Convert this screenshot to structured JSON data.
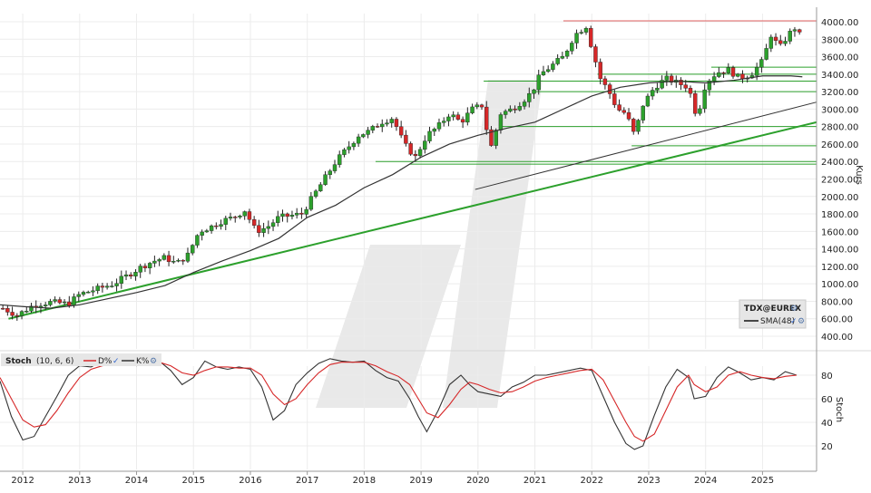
{
  "chart_data": [
    {
      "type": "candlestick",
      "symbol": "TDX@EUREX",
      "ylabel": "Kurs",
      "ylim": [
        400,
        4000
      ],
      "yticks": [
        400,
        600,
        800,
        1000,
        1200,
        1400,
        1600,
        1800,
        2000,
        2200,
        2400,
        2600,
        2800,
        3000,
        3200,
        3400,
        3600,
        3800,
        4000
      ],
      "ytick_labels": [
        "400.00",
        "600.00",
        "800.00",
        "1000.00",
        "1200.00",
        "1400.00",
        "1600.00",
        "1800.00",
        "2000.00",
        "2200.00",
        "2400.00",
        "2600.00",
        "2800.00",
        "3000.00",
        "3200.00",
        "3400.00",
        "3600.00",
        "3800.00",
        "4000.00"
      ],
      "xlim": [
        2011.6,
        2025.95
      ],
      "xticks": [
        2012,
        2013,
        2014,
        2015,
        2016,
        2017,
        2018,
        2019,
        2020,
        2021,
        2022,
        2023,
        2024,
        2025
      ],
      "xtick_labels": [
        "2012",
        "2013",
        "2014",
        "2015",
        "2016",
        "2017",
        "2018",
        "2019",
        "2020",
        "2021",
        "2022",
        "2023",
        "2024",
        "2025"
      ],
      "grid": true,
      "legend_position": "bottom-right",
      "legend": {
        "symbol": "TDX@EUREX",
        "sma": "SMA(48)"
      },
      "colors": {
        "up": "#2ca02c",
        "down": "#d62728",
        "sma": "#333333",
        "trend": "#2ca02c",
        "resistance": "#e06060",
        "support": "#2ca02c"
      },
      "close_path": [
        [
          2011.65,
          720
        ],
        [
          2011.9,
          640
        ],
        [
          2012.2,
          760
        ],
        [
          2012.5,
          790
        ],
        [
          2012.8,
          770
        ],
        [
          2013.0,
          880
        ],
        [
          2013.3,
          940
        ],
        [
          2013.6,
          1000
        ],
        [
          2013.9,
          1120
        ],
        [
          2014.1,
          1200
        ],
        [
          2014.3,
          1260
        ],
        [
          2014.5,
          1300
        ],
        [
          2014.7,
          1230
        ],
        [
          2014.9,
          1330
        ],
        [
          2015.1,
          1600
        ],
        [
          2015.3,
          1650
        ],
        [
          2015.5,
          1720
        ],
        [
          2015.7,
          1760
        ],
        [
          2015.9,
          1840
        ],
        [
          2016.1,
          1600
        ],
        [
          2016.3,
          1650
        ],
        [
          2016.5,
          1760
        ],
        [
          2016.7,
          1780
        ],
        [
          2016.9,
          1800
        ],
        [
          2017.1,
          2000
        ],
        [
          2017.3,
          2200
        ],
        [
          2017.5,
          2400
        ],
        [
          2017.7,
          2550
        ],
        [
          2017.9,
          2700
        ],
        [
          2018.1,
          2750
        ],
        [
          2018.3,
          2850
        ],
        [
          2018.5,
          2900
        ],
        [
          2018.7,
          2600
        ],
        [
          2018.9,
          2450
        ],
        [
          2019.1,
          2700
        ],
        [
          2019.3,
          2800
        ],
        [
          2019.5,
          2950
        ],
        [
          2019.7,
          2850
        ],
        [
          2019.9,
          3000
        ],
        [
          2020.1,
          3050
        ],
        [
          2020.2,
          2500
        ],
        [
          2020.4,
          2950
        ],
        [
          2020.6,
          3000
        ],
        [
          2020.8,
          3100
        ],
        [
          2020.95,
          3200
        ],
        [
          2021.1,
          3400
        ],
        [
          2021.3,
          3500
        ],
        [
          2021.5,
          3600
        ],
        [
          2021.7,
          3850
        ],
        [
          2021.9,
          3950
        ],
        [
          2022.0,
          3700
        ],
        [
          2022.15,
          3350
        ],
        [
          2022.3,
          3200
        ],
        [
          2022.45,
          3000
        ],
        [
          2022.6,
          2950
        ],
        [
          2022.75,
          2700
        ],
        [
          2022.9,
          3050
        ],
        [
          2023.1,
          3250
        ],
        [
          2023.3,
          3350
        ],
        [
          2023.5,
          3300
        ],
        [
          2023.7,
          3250
        ],
        [
          2023.85,
          2900
        ],
        [
          2024.0,
          3300
        ],
        [
          2024.2,
          3420
        ],
        [
          2024.4,
          3450
        ],
        [
          2024.6,
          3350
        ],
        [
          2024.8,
          3400
        ],
        [
          2025.0,
          3550
        ],
        [
          2025.15,
          3850
        ],
        [
          2025.3,
          3700
        ],
        [
          2025.45,
          3850
        ],
        [
          2025.6,
          3950
        ],
        [
          2025.7,
          3750
        ]
      ],
      "sma48": [
        [
          2011.6,
          760
        ],
        [
          2012.0,
          740
        ],
        [
          2012.5,
          720
        ],
        [
          2013.0,
          760
        ],
        [
          2013.5,
          830
        ],
        [
          2014.0,
          900
        ],
        [
          2014.5,
          980
        ],
        [
          2015.0,
          1130
        ],
        [
          2015.5,
          1260
        ],
        [
          2016.0,
          1380
        ],
        [
          2016.5,
          1520
        ],
        [
          2017.0,
          1760
        ],
        [
          2017.5,
          1900
        ],
        [
          2018.0,
          2100
        ],
        [
          2018.5,
          2250
        ],
        [
          2019.0,
          2450
        ],
        [
          2019.5,
          2600
        ],
        [
          2020.0,
          2700
        ],
        [
          2020.5,
          2780
        ],
        [
          2021.0,
          2850
        ],
        [
          2021.5,
          3000
        ],
        [
          2022.0,
          3150
        ],
        [
          2022.5,
          3250
        ],
        [
          2023.0,
          3300
        ],
        [
          2023.5,
          3320
        ],
        [
          2024.0,
          3300
        ],
        [
          2024.5,
          3330
        ],
        [
          2025.0,
          3380
        ],
        [
          2025.5,
          3380
        ],
        [
          2025.7,
          3370
        ]
      ],
      "trend_lines": [
        {
          "color": "green",
          "from": [
            2011.75,
            600
          ],
          "to": [
            2025.95,
            2850
          ]
        },
        {
          "color": "dark",
          "from": [
            2019.95,
            2080
          ],
          "to": [
            2025.95,
            3080
          ]
        }
      ],
      "horizontal_levels": [
        {
          "color": "red",
          "y": 4010,
          "from": 2021.5,
          "to": 2025.95
        },
        {
          "color": "green",
          "y": 3480,
          "from": 2024.1,
          "to": 2025.95
        },
        {
          "color": "green",
          "y": 3400,
          "from": 2022.1,
          "to": 2025.95
        },
        {
          "color": "green",
          "y": 3320,
          "from": 2020.1,
          "to": 2025.95
        },
        {
          "color": "green",
          "y": 3200,
          "from": 2021.0,
          "to": 2025.95
        },
        {
          "color": "green",
          "y": 2800,
          "from": 2020.4,
          "to": 2025.95
        },
        {
          "color": "green",
          "y": 2580,
          "from": 2022.7,
          "to": 2025.95
        },
        {
          "color": "green",
          "y": 2400,
          "from": 2018.2,
          "to": 2025.95
        },
        {
          "color": "green",
          "y": 2370,
          "from": 2018.8,
          "to": 2025.95
        }
      ]
    },
    {
      "type": "line",
      "title": "Stoch",
      "params": "(10, 6, 6)",
      "ylabel": "Stoch",
      "ylim": [
        10,
        100
      ],
      "yticks": [
        20,
        40,
        60,
        80
      ],
      "ytick_labels": [
        "20",
        "40",
        "60",
        "80"
      ],
      "legend": {
        "d": "D%",
        "k": "K%"
      },
      "series": [
        {
          "name": "K%",
          "color": "#333333",
          "points": [
            [
              2011.6,
              75
            ],
            [
              2011.8,
              45
            ],
            [
              2012.0,
              25
            ],
            [
              2012.2,
              28
            ],
            [
              2012.4,
              45
            ],
            [
              2012.6,
              62
            ],
            [
              2012.8,
              80
            ],
            [
              2013.0,
              88
            ],
            [
              2013.2,
              87
            ],
            [
              2013.4,
              92
            ],
            [
              2013.6,
              90
            ],
            [
              2013.8,
              93
            ],
            [
              2014.0,
              88
            ],
            [
              2014.2,
              94
            ],
            [
              2014.4,
              92
            ],
            [
              2014.6,
              84
            ],
            [
              2014.8,
              72
            ],
            [
              2015.0,
              78
            ],
            [
              2015.2,
              92
            ],
            [
              2015.4,
              87
            ],
            [
              2015.6,
              85
            ],
            [
              2015.8,
              87
            ],
            [
              2016.0,
              85
            ],
            [
              2016.2,
              70
            ],
            [
              2016.4,
              42
            ],
            [
              2016.6,
              50
            ],
            [
              2016.8,
              72
            ],
            [
              2017.0,
              82
            ],
            [
              2017.2,
              90
            ],
            [
              2017.4,
              94
            ],
            [
              2017.6,
              92
            ],
            [
              2017.8,
              91
            ],
            [
              2018.0,
              92
            ],
            [
              2018.2,
              84
            ],
            [
              2018.4,
              78
            ],
            [
              2018.6,
              75
            ],
            [
              2018.8,
              60
            ],
            [
              2018.95,
              45
            ],
            [
              2019.1,
              32
            ],
            [
              2019.3,
              50
            ],
            [
              2019.5,
              72
            ],
            [
              2019.7,
              80
            ],
            [
              2019.85,
              72
            ],
            [
              2020.0,
              66
            ],
            [
              2020.2,
              64
            ],
            [
              2020.4,
              62
            ],
            [
              2020.6,
              70
            ],
            [
              2020.8,
              74
            ],
            [
              2021.0,
              80
            ],
            [
              2021.2,
              80
            ],
            [
              2021.4,
              82
            ],
            [
              2021.6,
              84
            ],
            [
              2021.8,
              86
            ],
            [
              2022.0,
              84
            ],
            [
              2022.2,
              62
            ],
            [
              2022.4,
              40
            ],
            [
              2022.6,
              22
            ],
            [
              2022.75,
              17
            ],
            [
              2022.9,
              20
            ],
            [
              2023.1,
              46
            ],
            [
              2023.3,
              70
            ],
            [
              2023.5,
              85
            ],
            [
              2023.7,
              78
            ],
            [
              2023.8,
              60
            ],
            [
              2024.0,
              62
            ],
            [
              2024.2,
              78
            ],
            [
              2024.4,
              87
            ],
            [
              2024.6,
              82
            ],
            [
              2024.8,
              76
            ],
            [
              2025.0,
              78
            ],
            [
              2025.2,
              76
            ],
            [
              2025.4,
              83
            ],
            [
              2025.6,
              80
            ]
          ]
        },
        {
          "name": "D%",
          "color": "#d62728",
          "points": [
            [
              2011.6,
              78
            ],
            [
              2011.8,
              60
            ],
            [
              2012.0,
              42
            ],
            [
              2012.2,
              36
            ],
            [
              2012.4,
              38
            ],
            [
              2012.6,
              50
            ],
            [
              2012.8,
              65
            ],
            [
              2013.0,
              78
            ],
            [
              2013.2,
              85
            ],
            [
              2013.4,
              88
            ],
            [
              2013.6,
              89
            ],
            [
              2013.8,
              90
            ],
            [
              2014.0,
              90
            ],
            [
              2014.2,
              91
            ],
            [
              2014.4,
              91
            ],
            [
              2014.6,
              88
            ],
            [
              2014.8,
              82
            ],
            [
              2015.0,
              80
            ],
            [
              2015.2,
              84
            ],
            [
              2015.4,
              87
            ],
            [
              2015.6,
              87
            ],
            [
              2015.8,
              86
            ],
            [
              2016.0,
              86
            ],
            [
              2016.2,
              80
            ],
            [
              2016.4,
              64
            ],
            [
              2016.6,
              55
            ],
            [
              2016.8,
              60
            ],
            [
              2017.0,
              72
            ],
            [
              2017.2,
              82
            ],
            [
              2017.4,
              89
            ],
            [
              2017.6,
              91
            ],
            [
              2017.8,
              91
            ],
            [
              2018.0,
              91
            ],
            [
              2018.2,
              88
            ],
            [
              2018.4,
              83
            ],
            [
              2018.6,
              79
            ],
            [
              2018.8,
              72
            ],
            [
              2018.95,
              60
            ],
            [
              2019.1,
              48
            ],
            [
              2019.3,
              44
            ],
            [
              2019.5,
              55
            ],
            [
              2019.7,
              68
            ],
            [
              2019.85,
              74
            ],
            [
              2020.0,
              72
            ],
            [
              2020.2,
              68
            ],
            [
              2020.4,
              65
            ],
            [
              2020.6,
              66
            ],
            [
              2020.8,
              70
            ],
            [
              2021.0,
              75
            ],
            [
              2021.2,
              78
            ],
            [
              2021.4,
              80
            ],
            [
              2021.6,
              82
            ],
            [
              2021.8,
              84
            ],
            [
              2022.0,
              85
            ],
            [
              2022.2,
              76
            ],
            [
              2022.4,
              58
            ],
            [
              2022.6,
              40
            ],
            [
              2022.75,
              28
            ],
            [
              2022.9,
              24
            ],
            [
              2023.1,
              30
            ],
            [
              2023.3,
              50
            ],
            [
              2023.5,
              70
            ],
            [
              2023.7,
              80
            ],
            [
              2023.8,
              72
            ],
            [
              2024.0,
              66
            ],
            [
              2024.2,
              70
            ],
            [
              2024.4,
              80
            ],
            [
              2024.6,
              83
            ],
            [
              2024.8,
              80
            ],
            [
              2025.0,
              78
            ],
            [
              2025.2,
              77
            ],
            [
              2025.4,
              79
            ],
            [
              2025.6,
              80
            ]
          ]
        }
      ]
    }
  ]
}
